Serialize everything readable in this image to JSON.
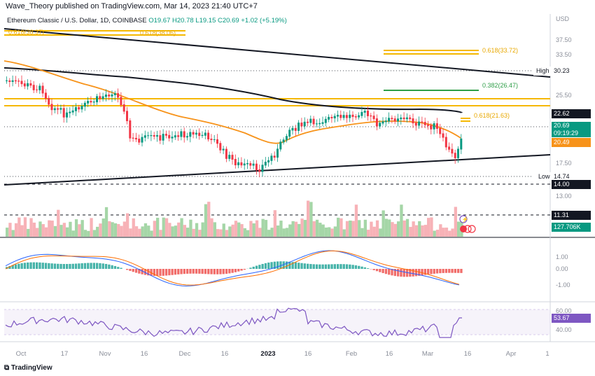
{
  "header": {
    "publisher_line": "Wave_Theory published on TradingView.com, Mar 14, 2023 21:40 UTC+7"
  },
  "legend": {
    "symbol": "Ethereum Classic / U.S. Dollar, 1D, COINBASE",
    "open": "O19.67",
    "high": "H20.78",
    "low": "L19.15",
    "close": "C20.69",
    "change": "+1.02 (+5.19%)"
  },
  "price_axis": {
    "currency": "USD",
    "ticks": [
      "37.50",
      "33.50",
      "25.50",
      "17.50",
      "13.00"
    ],
    "high_label": "High",
    "high_value": "30.23",
    "low_label": "Low",
    "low_value": "14.74",
    "tag_22_62": "22.62",
    "current_price": "20.69",
    "countdown": "09:19:29",
    "ema_value": "20.49",
    "level_14": "14.00",
    "level_11": "11.31",
    "volume_value": "127.706K"
  },
  "fib_labels": {
    "top_left_a": "0.618(38.06)",
    "top_left_b": "0.618(38.37)",
    "upper_right": "0.618(33.72)",
    "mid_right": "0.382(26.47)",
    "lower_right": "0.618(21.63)"
  },
  "macd_axis": [
    "0.00",
    "1.00",
    "-1.00"
  ],
  "rsi_axis": {
    "ticks": [
      "60.00",
      "40.00"
    ],
    "value": "53.67"
  },
  "time_axis": [
    "Oct",
    "17",
    "Nov",
    "16",
    "Dec",
    "16",
    "2023",
    "16",
    "Feb",
    "16",
    "Mar",
    "16",
    "Apr",
    "1"
  ],
  "colors": {
    "up": "#089981",
    "down": "#f23645",
    "ema": "#f7931a",
    "fib": "#f5b800",
    "fib_green": "#2e9e48",
    "macd": "#2962ff",
    "signal": "#ff6d00",
    "rsi": "#7e57c2"
  },
  "footer": {
    "brand": "TradingView"
  }
}
